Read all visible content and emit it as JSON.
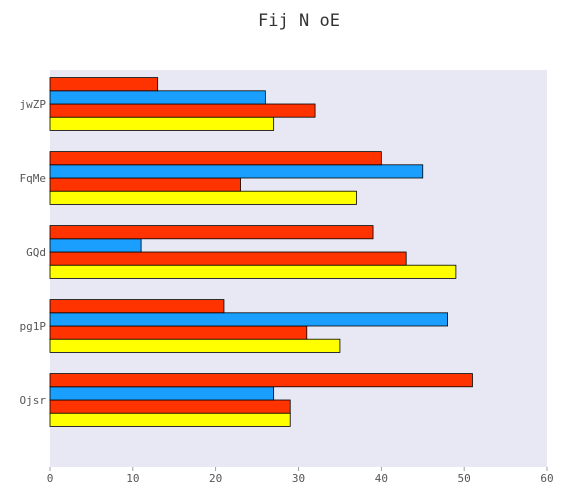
{
  "chart_data": {
    "type": "bar",
    "orientation": "horizontal",
    "title": "Fij N oE",
    "xlabel": "",
    "ylabel": "",
    "categories": [
      "Ojsr",
      "pg1P",
      "GQd",
      "FqMe",
      "jwZP"
    ],
    "series": [
      {
        "color": "#ffff00",
        "values": [
          29,
          35,
          49,
          37,
          27
        ]
      },
      {
        "color": "#ff3300",
        "values": [
          29,
          31,
          43,
          23,
          32
        ]
      },
      {
        "color": "#1a9fff",
        "values": [
          27,
          48,
          11,
          45,
          26
        ]
      },
      {
        "color": "#ff3300",
        "values": [
          51,
          21,
          39,
          40,
          13
        ]
      }
    ],
    "xlim": [
      0,
      60
    ],
    "xticks": [
      "0",
      "10",
      "20",
      "30",
      "40",
      "50",
      "60"
    ],
    "grid": false,
    "legend": "none",
    "background": "#e8e8f4",
    "bar_edge_color": "#000000"
  }
}
